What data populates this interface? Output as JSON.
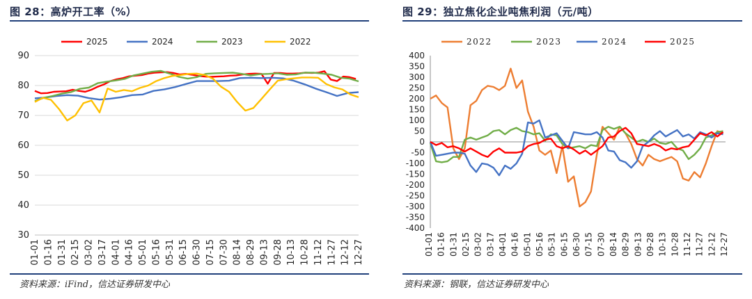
{
  "left": {
    "title": "图 28：高炉开工率（%）",
    "source": "资料来源：iFind，信达证券研发中心"
  },
  "right": {
    "title": "图 29：独立焦化企业吨焦利润（元/吨）",
    "source": "资料来源：钢联，信达证券研发中心"
  },
  "chart_data": [
    {
      "type": "line",
      "title": "图 28：高炉开工率（%）",
      "xlabel": "",
      "ylabel": "",
      "ylim": [
        30,
        90
      ],
      "yticks": [
        30,
        40,
        50,
        60,
        70,
        80,
        90
      ],
      "categories": [
        "01-01",
        "01-16",
        "01-31",
        "02-15",
        "03-02",
        "03-17",
        "04-01",
        "04-16",
        "05-01",
        "05-16",
        "05-31",
        "06-15",
        "06-30",
        "07-15",
        "07-30",
        "08-14",
        "08-29",
        "09-13",
        "09-28",
        "10-13",
        "10-28",
        "11-12",
        "11-27",
        "12-12",
        "12-27"
      ],
      "x_range": [
        0,
        360
      ],
      "legend_position": "top",
      "series": [
        {
          "name": "2025",
          "color": "#ff0000",
          "x": [
            0,
            7,
            14,
            21,
            28,
            35,
            42,
            49,
            56,
            63,
            70,
            77,
            84,
            91,
            98,
            105,
            112,
            119,
            126,
            133,
            140,
            147,
            154,
            161,
            168,
            175,
            182,
            189,
            196,
            203,
            210,
            217,
            224,
            231,
            238,
            245,
            252,
            259,
            266,
            273,
            280,
            287,
            294,
            301,
            308,
            315,
            322,
            329,
            336,
            343,
            350,
            357
          ],
          "values": [
            78.2,
            77.4,
            77.5,
            77.9,
            78.0,
            78.1,
            78.6,
            78.2,
            77.9,
            78.6,
            79.6,
            80.4,
            81.5,
            82.1,
            82.5,
            83.1,
            83.3,
            83.5,
            84.0,
            84.3,
            84.4,
            84.5,
            84.2,
            83.7,
            83.9,
            83.6,
            83.2,
            83.0,
            82.9,
            83.0,
            83.1,
            83.3,
            83.4,
            83.7,
            83.9,
            84.0,
            83.9,
            80.6,
            84.2,
            84.2,
            84.0,
            84.0,
            84.1,
            84.3,
            84.2,
            84.3,
            84.8,
            82.0,
            81.5,
            83.0,
            82.8,
            82.2
          ]
        },
        {
          "name": "2024",
          "color": "#4472c4",
          "x": [
            0,
            12,
            24,
            36,
            48,
            60,
            72,
            84,
            96,
            108,
            120,
            132,
            144,
            156,
            168,
            180,
            192,
            204,
            216,
            228,
            240,
            252,
            264,
            276,
            288,
            300,
            312,
            324,
            336,
            348,
            360
          ],
          "values": [
            75.7,
            76.0,
            76.5,
            76.8,
            76.6,
            75.8,
            75.3,
            75.6,
            76.1,
            76.8,
            77.0,
            78.2,
            78.7,
            79.5,
            80.5,
            81.5,
            81.5,
            81.5,
            81.6,
            82.5,
            82.6,
            82.5,
            82.6,
            82.4,
            81.6,
            80.4,
            79.0,
            77.8,
            76.5,
            77.5,
            77.8
          ]
        },
        {
          "name": "2023",
          "color": "#70ad47",
          "x": [
            0,
            10,
            20,
            30,
            40,
            50,
            60,
            70,
            80,
            90,
            100,
            110,
            120,
            130,
            140,
            150,
            160,
            170,
            180,
            190,
            200,
            210,
            220,
            230,
            240,
            250,
            260,
            270,
            280,
            290,
            300,
            310,
            320,
            330,
            340,
            350,
            360
          ],
          "values": [
            74.8,
            75.9,
            76.5,
            77.3,
            77.8,
            78.9,
            79.3,
            80.8,
            81.3,
            81.7,
            82.2,
            83.4,
            84.0,
            84.6,
            84.9,
            84.0,
            82.9,
            82.3,
            82.8,
            83.9,
            84.1,
            84.2,
            84.3,
            83.9,
            83.4,
            83.8,
            83.9,
            84.1,
            83.6,
            83.7,
            84.3,
            84.3,
            84.0,
            83.6,
            82.6,
            82.3,
            81.4
          ]
        },
        {
          "name": "2022",
          "color": "#ffc000",
          "x": [
            0,
            9,
            18,
            27,
            36,
            45,
            54,
            63,
            72,
            81,
            90,
            99,
            108,
            117,
            126,
            135,
            144,
            153,
            162,
            171,
            180,
            189,
            198,
            207,
            216,
            225,
            234,
            243,
            252,
            261,
            270,
            279,
            288,
            297,
            306,
            315,
            324,
            333,
            342,
            351,
            360
          ],
          "values": [
            74.5,
            75.9,
            75.2,
            72.1,
            68.3,
            70.0,
            74.1,
            75.0,
            71.0,
            79.0,
            77.9,
            78.5,
            78.1,
            79.2,
            80.0,
            81.5,
            82.5,
            83.2,
            83.5,
            83.9,
            84.0,
            83.5,
            82.3,
            79.6,
            77.9,
            74.5,
            71.6,
            72.5,
            75.5,
            78.6,
            81.6,
            82.1,
            82.4,
            82.7,
            82.7,
            82.6,
            80.5,
            79.4,
            78.7,
            77.0,
            76.1
          ]
        }
      ]
    },
    {
      "type": "line",
      "title": "图 29：独立焦化企业吨焦利润（元/吨）",
      "xlabel": "",
      "ylabel": "",
      "ylim": [
        -400,
        400
      ],
      "yticks": [
        -400,
        -350,
        -300,
        -250,
        -200,
        -150,
        -100,
        -50,
        0,
        50,
        100,
        150,
        200,
        250,
        300,
        350,
        400
      ],
      "categories": [
        "01-01",
        "01-16",
        "01-31",
        "02-15",
        "03-02",
        "03-17",
        "04-01",
        "04-16",
        "05-01",
        "05-16",
        "05-31",
        "06-15",
        "06-30",
        "07-15",
        "07-30",
        "08-14",
        "08-29",
        "09-13",
        "09-28",
        "10-13",
        "10-28",
        "11-12",
        "11-27",
        "12-12",
        "12-27"
      ],
      "x_range": [
        0,
        360
      ],
      "legend_position": "top",
      "series": [
        {
          "name": "2022",
          "color": "#ed7d31",
          "x": [
            0,
            7,
            14,
            21,
            28,
            35,
            42,
            49,
            56,
            63,
            70,
            77,
            84,
            91,
            98,
            105,
            112,
            119,
            126,
            133,
            140,
            147,
            154,
            161,
            168,
            175,
            182,
            189,
            196,
            203,
            210,
            217,
            224,
            231,
            238,
            245,
            252,
            259,
            266,
            273,
            280,
            287,
            294,
            301,
            308,
            315,
            322,
            329,
            336,
            343,
            350,
            357
          ],
          "values": [
            200,
            215,
            180,
            160,
            -30,
            -80,
            -30,
            170,
            190,
            240,
            260,
            255,
            240,
            260,
            340,
            250,
            285,
            140,
            70,
            -40,
            -60,
            -40,
            -145,
            -20,
            -185,
            -160,
            -300,
            -280,
            -230,
            -60,
            70,
            40,
            10,
            70,
            40,
            -10,
            -80,
            -110,
            -60,
            -80,
            -90,
            -80,
            -70,
            -90,
            -170,
            -180,
            -140,
            -165,
            -100,
            -20,
            50,
            40
          ]
        },
        {
          "name": "2023",
          "color": "#70ad47",
          "x": [
            0,
            7,
            14,
            21,
            28,
            35,
            42,
            49,
            56,
            63,
            70,
            77,
            84,
            91,
            98,
            105,
            112,
            119,
            126,
            133,
            140,
            147,
            154,
            161,
            168,
            175,
            182,
            189,
            196,
            203,
            210,
            217,
            224,
            231,
            238,
            245,
            252,
            259,
            266,
            273,
            280,
            287,
            294,
            301,
            308,
            315,
            322,
            329,
            336,
            343,
            350,
            357
          ],
          "values": [
            -5,
            -90,
            -95,
            -90,
            -70,
            -70,
            10,
            20,
            10,
            20,
            30,
            50,
            55,
            35,
            55,
            65,
            50,
            45,
            35,
            40,
            5,
            35,
            30,
            -10,
            -30,
            -25,
            -20,
            -30,
            -15,
            -20,
            55,
            70,
            60,
            70,
            40,
            20,
            0,
            10,
            0,
            15,
            -5,
            -10,
            0,
            -30,
            -40,
            -80,
            -60,
            -30,
            20,
            30,
            45,
            50
          ]
        },
        {
          "name": "2024",
          "color": "#4472c4",
          "x": [
            0,
            7,
            14,
            21,
            28,
            35,
            42,
            49,
            56,
            63,
            70,
            77,
            84,
            91,
            98,
            105,
            112,
            119,
            126,
            133,
            140,
            147,
            154,
            161,
            168,
            175,
            182,
            189,
            196,
            203,
            210,
            217,
            224,
            231,
            238,
            245,
            252,
            259,
            266,
            273,
            280,
            287,
            294,
            301,
            308,
            315,
            322,
            329,
            336,
            343,
            350,
            357
          ],
          "values": [
            0,
            -65,
            -60,
            -55,
            -50,
            -50,
            -55,
            -110,
            -140,
            -100,
            -105,
            -120,
            -155,
            -110,
            -125,
            -100,
            -55,
            90,
            85,
            100,
            20,
            30,
            40,
            5,
            -30,
            45,
            40,
            35,
            35,
            45,
            20,
            -40,
            -45,
            -85,
            -95,
            -120,
            -90,
            -20,
            0,
            30,
            50,
            25,
            40,
            55,
            25,
            35,
            15,
            45,
            35,
            20,
            40,
            35
          ]
        },
        {
          "name": "2025",
          "color": "#ff0000",
          "x": [
            0,
            7,
            14,
            21,
            28,
            35,
            42,
            49,
            56,
            63,
            70,
            77,
            84,
            91,
            98,
            105,
            112,
            119,
            126,
            133,
            140,
            147,
            154,
            161,
            168,
            175,
            182,
            189,
            196,
            203,
            210,
            217,
            224,
            231,
            238,
            245,
            252,
            259,
            266,
            273,
            280,
            287,
            294,
            301,
            308,
            315,
            322,
            329,
            336,
            343,
            350,
            357
          ],
          "values": [
            0,
            -15,
            -5,
            -25,
            -20,
            -30,
            -45,
            -30,
            -45,
            -60,
            -70,
            -45,
            -30,
            -50,
            -50,
            -50,
            -45,
            -20,
            -10,
            -5,
            10,
            15,
            -20,
            -30,
            -20,
            -35,
            -55,
            -40,
            -60,
            -40,
            -20,
            20,
            25,
            50,
            65,
            40,
            -10,
            -15,
            -20,
            -10,
            -20,
            -40,
            -30,
            -35,
            -25,
            -20,
            10,
            40,
            30,
            45,
            25,
            45
          ]
        }
      ]
    }
  ]
}
